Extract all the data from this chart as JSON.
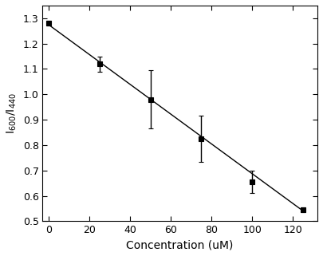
{
  "x": [
    0,
    25,
    50,
    75,
    100,
    125
  ],
  "y": [
    1.28,
    1.12,
    0.98,
    0.825,
    0.655,
    0.545
  ],
  "yerr": [
    0.01,
    0.03,
    0.115,
    0.09,
    0.045,
    0.01
  ],
  "fit_x": [
    0,
    125
  ],
  "fit_slope": -0.00588,
  "fit_intercept": 1.275,
  "xlabel": "Concentration (uM)",
  "ylabel": "I$_{600}$/I$_{440}$",
  "xlim": [
    -3,
    132
  ],
  "ylim": [
    0.5,
    1.35
  ],
  "yticks": [
    0.5,
    0.6,
    0.7,
    0.8,
    0.9,
    1.0,
    1.1,
    1.2,
    1.3
  ],
  "xticks": [
    0,
    20,
    40,
    60,
    80,
    100,
    120
  ],
  "marker": "s",
  "marker_color": "black",
  "marker_size": 5,
  "line_color": "black",
  "line_width": 1.0,
  "capsize": 2.5,
  "elinewidth": 1.0,
  "background_color": "#ffffff"
}
